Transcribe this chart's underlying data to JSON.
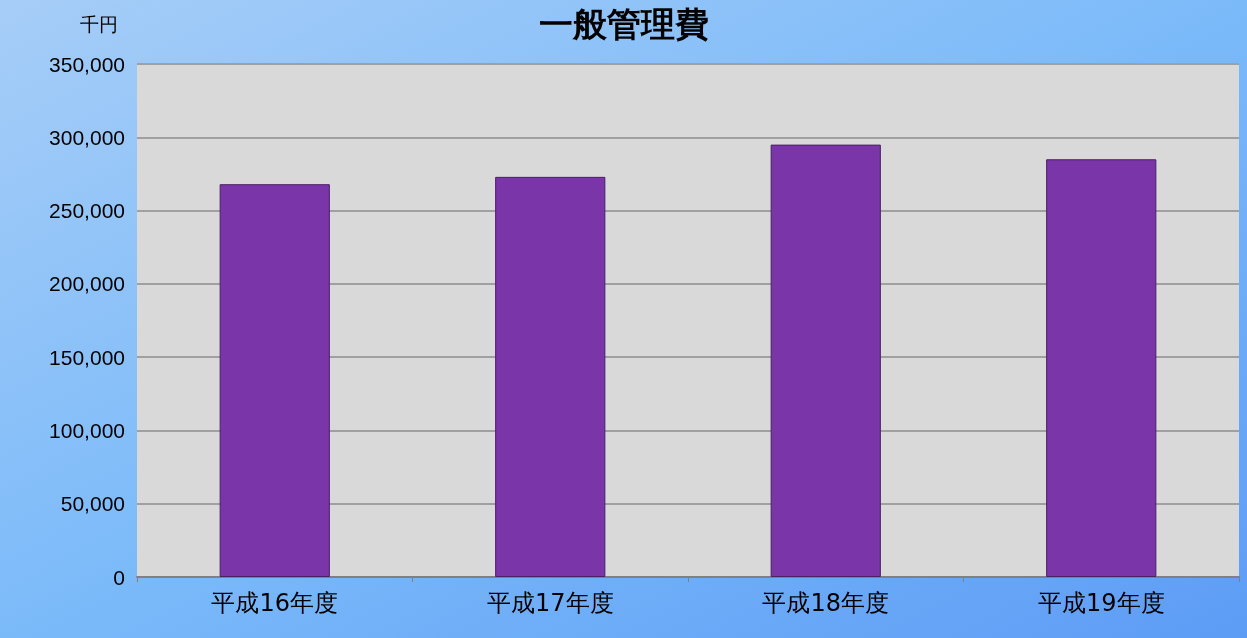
{
  "chart_data": {
    "type": "bar",
    "title": "一般管理費",
    "ylabel": "千円",
    "categories": [
      "平成16年度",
      "平成17年度",
      "平成18年度",
      "平成19年度"
    ],
    "values": [
      268000,
      273000,
      295000,
      285000
    ],
    "color": "#7a35a8",
    "ylim": [
      0,
      350000
    ],
    "yticks": [
      0,
      {
        "value": 50000,
        "label": "50,000"
      },
      {
        "value": 100000,
        "label": "100,000"
      },
      {
        "value": 150000,
        "label": "150,000"
      },
      {
        "value": 200000,
        "label": "200,000"
      },
      {
        "value": 250000,
        "label": "250,000"
      },
      {
        "value": 300000,
        "label": "300,000"
      },
      {
        "value": 350000,
        "label": "350,000"
      }
    ],
    "grid": "y"
  }
}
